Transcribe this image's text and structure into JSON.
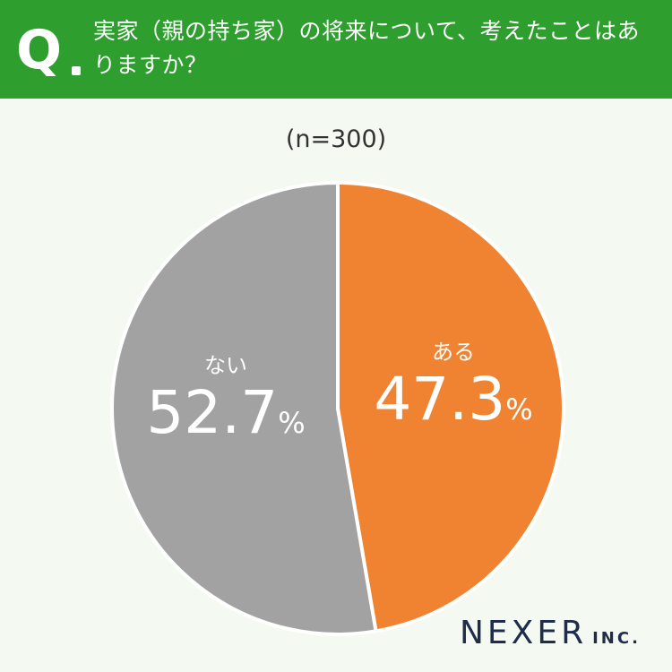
{
  "header": {
    "q_mark": "Q",
    "question": "実家（親の持ち家）の将来について、考えたことはありますか？"
  },
  "sample_size": "(n=300)",
  "colors": {
    "header_bg": "#2e9e2e",
    "background": "#f4faf2",
    "aru": "#f08332",
    "nai": "#a2a2a2",
    "divider": "#ffffff"
  },
  "chart_data": {
    "type": "pie",
    "categories": [
      "ある",
      "ない"
    ],
    "values": [
      47.3,
      52.7
    ],
    "value_labels": [
      "47.3",
      "52.7"
    ],
    "unit": "%",
    "start": "12 o'clock",
    "direction": "clockwise"
  },
  "labels": {
    "aru": {
      "category": "ある",
      "value": "47.3",
      "unit": "%"
    },
    "nai": {
      "category": "ない",
      "value": "52.7",
      "unit": "%"
    }
  },
  "logo": {
    "main": "NEXER",
    "sub": "INC."
  }
}
